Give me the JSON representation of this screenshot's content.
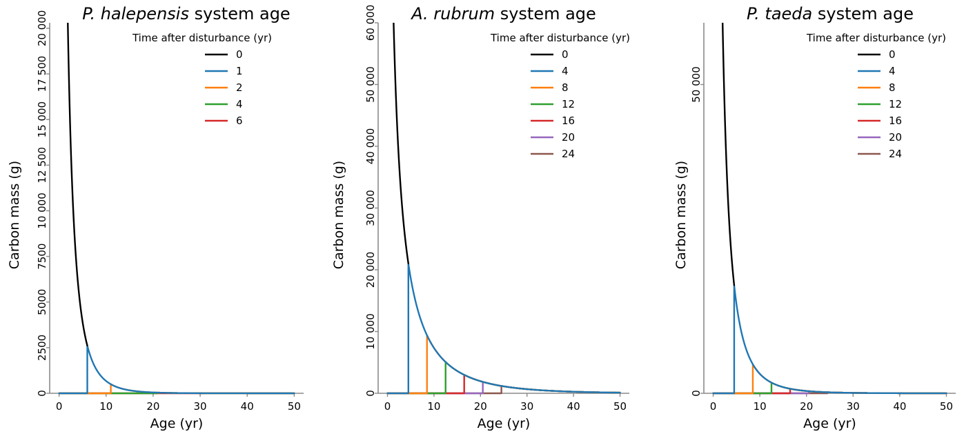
{
  "chart_data": [
    {
      "type": "line",
      "title_species": "P. halepensis",
      "title_suffix": "system age",
      "xlabel": "Age (yr)",
      "ylabel": "Carbon mass (g)",
      "xlim": [
        -2,
        52
      ],
      "ylim": [
        0,
        20300
      ],
      "x_ticks": [
        0,
        10,
        20,
        30,
        40,
        50
      ],
      "x_tick_labels": [
        "0",
        "10",
        "20",
        "30",
        "40",
        "50"
      ],
      "y_ticks": [
        0,
        2500,
        5000,
        7500,
        10000,
        12500,
        15000,
        17500,
        20000
      ],
      "y_tick_labels": [
        "0",
        "2500",
        "5000",
        "7500",
        "10 000",
        "12 500",
        "15 000",
        "17 500",
        "20 000"
      ],
      "legend_title": "Time after disturbance (yr)",
      "legend_position": "top-right",
      "grid": false,
      "model": {
        "A": 2612,
        "k": 0.17,
        "tau": 1.0,
        "p": 1.5
      },
      "series": [
        {
          "name": "0",
          "disturbance_age": 0,
          "color": "#000000"
        },
        {
          "name": "1",
          "disturbance_age": 6,
          "color": "#1f77b4"
        },
        {
          "name": "2",
          "disturbance_age": 11,
          "color": "#ff7f0e"
        },
        {
          "name": "4",
          "disturbance_age": 21,
          "color": "#2ca02c"
        },
        {
          "name": "6",
          "disturbance_age": 31,
          "color": "#d62728"
        }
      ]
    },
    {
      "type": "line",
      "title_species": "A. rubrum",
      "title_suffix": "system age",
      "xlabel": "Age (yr)",
      "ylabel": "Carbon mass (g)",
      "xlim": [
        -2,
        52
      ],
      "ylim": [
        0,
        60000
      ],
      "x_ticks": [
        0,
        10,
        20,
        30,
        40,
        50
      ],
      "x_tick_labels": [
        "0",
        "10",
        "20",
        "30",
        "40",
        "50"
      ],
      "y_ticks": [
        0,
        10000,
        20000,
        30000,
        40000,
        50000,
        60000
      ],
      "y_tick_labels": [
        "0",
        "10 000",
        "20 000",
        "30 000",
        "40 000",
        "50 000",
        "60 000"
      ],
      "legend_title": "Time after disturbance (yr)",
      "legend_position": "top-right",
      "grid": false,
      "model": {
        "A": 21000,
        "k": 0.07,
        "tau": 1.0,
        "p": 0.96,
        "s": 4.5
      },
      "series": [
        {
          "name": "0",
          "disturbance_age": 0,
          "color": "#000000"
        },
        {
          "name": "4",
          "disturbance_age": 4.5,
          "color": "#1f77b4"
        },
        {
          "name": "8",
          "disturbance_age": 8.5,
          "color": "#ff7f0e"
        },
        {
          "name": "12",
          "disturbance_age": 12.5,
          "color": "#2ca02c"
        },
        {
          "name": "16",
          "disturbance_age": 16.5,
          "color": "#d62728"
        },
        {
          "name": "20",
          "disturbance_age": 20.5,
          "color": "#9467bd"
        },
        {
          "name": "24",
          "disturbance_age": 24.5,
          "color": "#8c564b"
        }
      ]
    },
    {
      "type": "line",
      "title_species": "P. taeda",
      "title_suffix": "system age",
      "xlabel": "Age (yr)",
      "ylabel": "Carbon mass (g)",
      "xlim": [
        -2,
        52
      ],
      "ylim": [
        0,
        60000
      ],
      "x_ticks": [
        0,
        10,
        20,
        30,
        40,
        50
      ],
      "x_tick_labels": [
        "0",
        "10",
        "20",
        "30",
        "40",
        "50"
      ],
      "y_ticks": [
        0,
        50000
      ],
      "y_tick_labels": [
        "0",
        "50 000"
      ],
      "legend_title": "Time after disturbance (yr)",
      "legend_position": "top-right",
      "grid": false,
      "model": {
        "A": 17500,
        "k": 0.11,
        "tau": 1.0,
        "p": 1.6,
        "s": 4.5
      },
      "series": [
        {
          "name": "0",
          "disturbance_age": 0,
          "color": "#000000"
        },
        {
          "name": "4",
          "disturbance_age": 4.5,
          "color": "#1f77b4"
        },
        {
          "name": "8",
          "disturbance_age": 8.5,
          "color": "#ff7f0e"
        },
        {
          "name": "12",
          "disturbance_age": 12.5,
          "color": "#2ca02c"
        },
        {
          "name": "16",
          "disturbance_age": 16.5,
          "color": "#d62728"
        },
        {
          "name": "20",
          "disturbance_age": 20.5,
          "color": "#9467bd"
        },
        {
          "name": "24",
          "disturbance_age": 24.5,
          "color": "#8c564b"
        }
      ]
    }
  ]
}
